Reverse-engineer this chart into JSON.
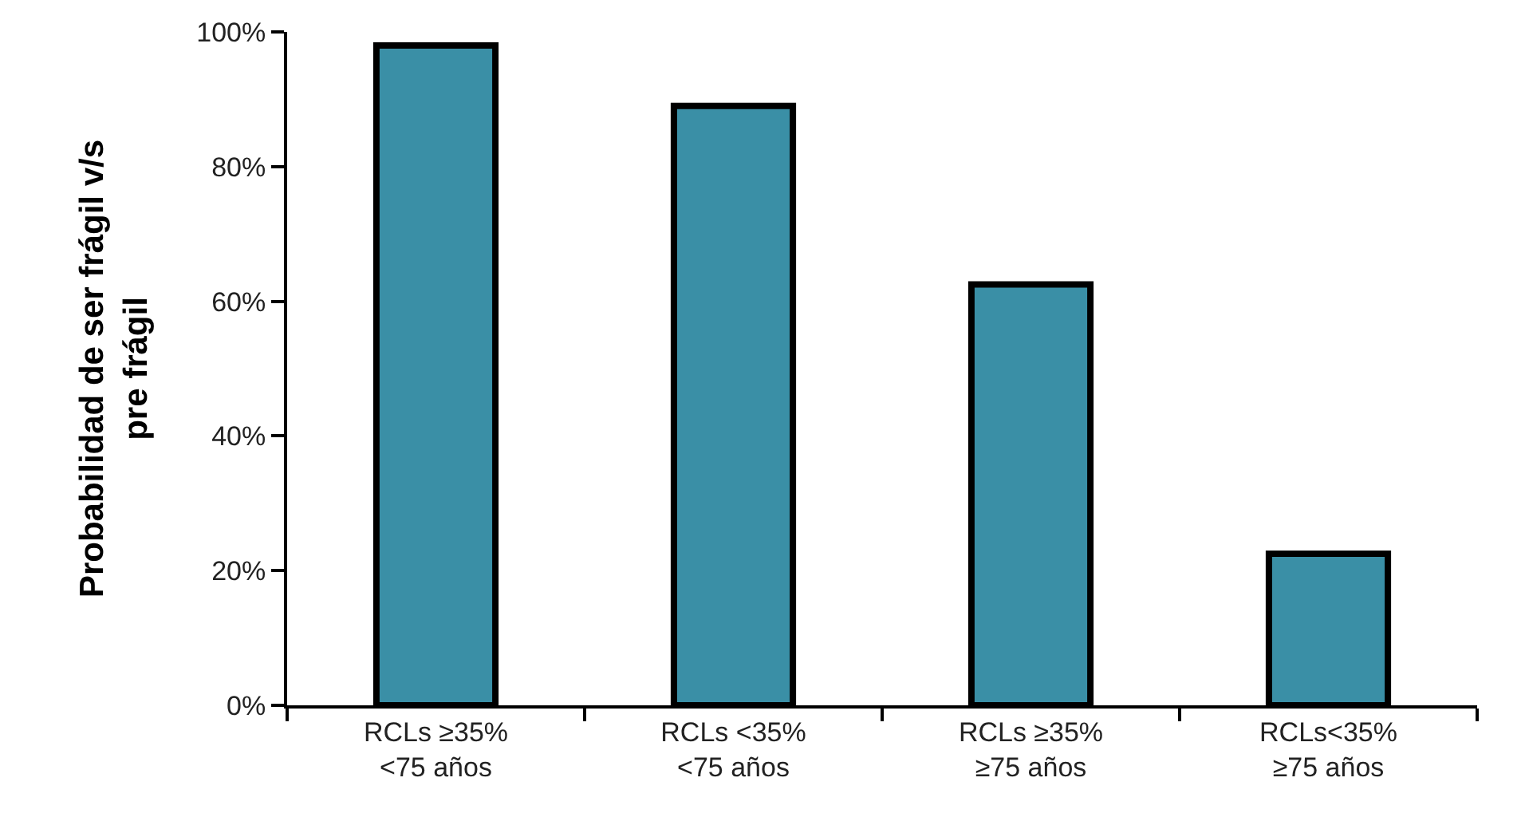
{
  "chart_data": {
    "type": "bar",
    "ylabel": "Probabilidad de ser frágil v/s\npre frágil",
    "categories": [
      "RCLs ≥35%\n<75 años",
      "RCLs <35%\n<75 años",
      "RCLs ≥35%\n≥75 años",
      "RCLs<35%\n≥75 años"
    ],
    "values": [
      98,
      89,
      62.5,
      22.5
    ],
    "color": "#3a8fa6",
    "ylim": [
      0,
      100
    ],
    "yticks": [
      {
        "value": 0,
        "label": "0%"
      },
      {
        "value": 20,
        "label": "20%"
      },
      {
        "value": 40,
        "label": "40%"
      },
      {
        "value": 60,
        "label": "60%"
      },
      {
        "value": 80,
        "label": "80%"
      },
      {
        "value": 100,
        "label": "100%"
      }
    ]
  }
}
